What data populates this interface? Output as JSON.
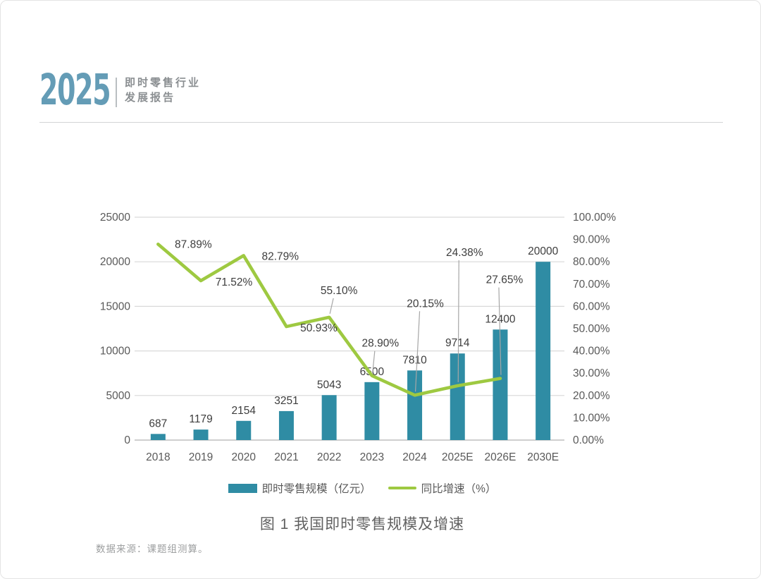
{
  "header": {
    "logo": "2025",
    "subtitle_line1": "即时零售行业",
    "subtitle_line2": "发展报告"
  },
  "chart_data": {
    "type": "bar",
    "subtype": "combo-bar-line-dual-axis",
    "title": "图 1 我国即时零售规模及增速",
    "categories": [
      "2018",
      "2019",
      "2020",
      "2021",
      "2022",
      "2023",
      "2024",
      "2025E",
      "2026E",
      "2030E"
    ],
    "series": [
      {
        "name": "即时零售规模（亿元）",
        "type": "bar",
        "axis": "left",
        "color": "#2f8ca4",
        "values": [
          687,
          1179,
          2154,
          3251,
          5043,
          6500,
          7810,
          9714,
          12400,
          20000
        ],
        "labels": [
          "687",
          "1179",
          "2154",
          "3251",
          "5043",
          "6500",
          "7810",
          "9714",
          "12400",
          "20000"
        ]
      },
      {
        "name": "同比增速（%）",
        "type": "line",
        "axis": "right",
        "color": "#9ec941",
        "values": [
          87.89,
          71.52,
          82.79,
          50.93,
          55.1,
          28.9,
          20.15,
          24.38,
          27.65,
          null
        ],
        "labels": [
          "87.89%",
          "71.52%",
          "82.79%",
          "50.93%",
          "55.10%",
          "28.90%",
          "20.15%",
          "24.38%",
          "27.65%"
        ]
      }
    ],
    "left_axis": {
      "min": 0,
      "max": 25000,
      "step": 5000,
      "tick_labels": [
        "0",
        "5000",
        "10000",
        "15000",
        "20000",
        "25000"
      ]
    },
    "right_axis": {
      "min": 0,
      "max": 100,
      "step": 10,
      "tick_labels": [
        "0.00%",
        "10.00%",
        "20.00%",
        "30.00%",
        "40.00%",
        "50.00%",
        "60.00%",
        "70.00%",
        "80.00%",
        "90.00%",
        "100.00%"
      ]
    },
    "grid": true,
    "legend_position": "bottom"
  },
  "legend": {
    "bar_label": "即时零售规模（亿元）",
    "line_label": "同比增速（%）"
  },
  "caption": "图 1 我国即时零售规模及增速",
  "source": "数据来源：课题组测算。",
  "colors": {
    "bar": "#2f8ca4",
    "line": "#9ec941",
    "logo": "#649cb6",
    "axis_text": "#595959",
    "data_label": "#3d3d3d",
    "gridline": "#d9d9d9",
    "baseline": "#bfbfbf",
    "leader": "#a6a6a6"
  }
}
